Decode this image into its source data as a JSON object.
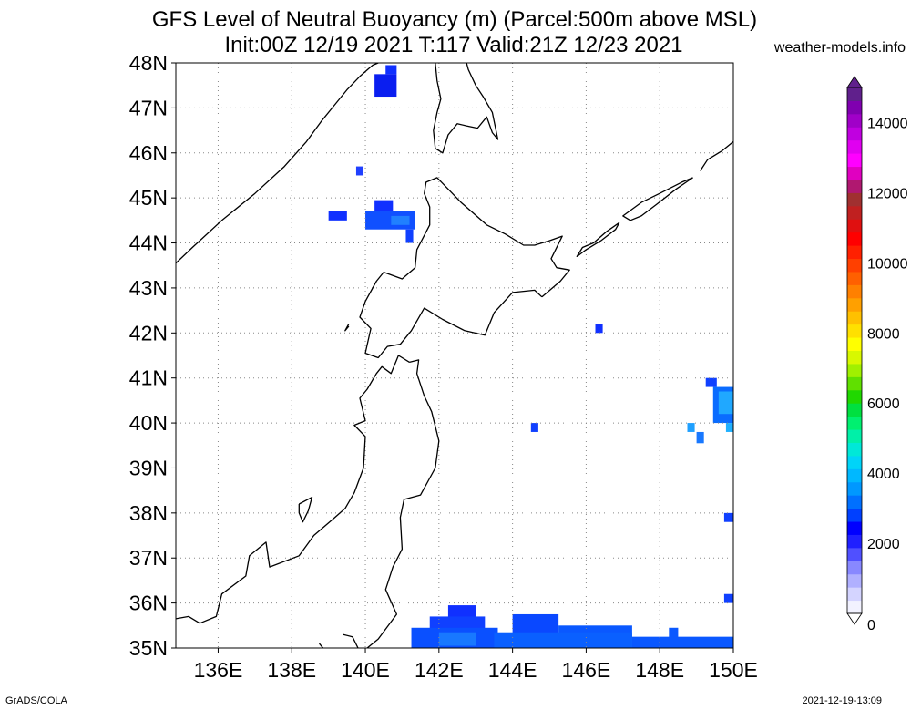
{
  "title": "GFS Level of Neutral Buoyancy (m) (Parcel:500m above MSL)",
  "subtitle": "Init:00Z 12/19 2021 T:117 Valid:21Z 12/23 2021",
  "credit": "weather-models.info",
  "footer_left": "GrADS/COLA",
  "footer_right": "2021-12-19-13:09",
  "map": {
    "lat_labels": [
      "35N",
      "36N",
      "37N",
      "38N",
      "39N",
      "40N",
      "41N",
      "42N",
      "43N",
      "44N",
      "45N",
      "46N",
      "47N",
      "48N"
    ],
    "lon_labels": [
      "136E",
      "138E",
      "140E",
      "142E",
      "144E",
      "146E",
      "148E",
      "150E"
    ],
    "lat_values": [
      35,
      36,
      37,
      38,
      39,
      40,
      41,
      42,
      43,
      44,
      45,
      46,
      47,
      48
    ],
    "lon_values": [
      136,
      138,
      140,
      142,
      144,
      146,
      148,
      150
    ],
    "lon_range": [
      134.85,
      150
    ],
    "lat_range": [
      35,
      48
    ],
    "grid": "dotted"
  },
  "colorbar": {
    "labels": [
      "0",
      "2000",
      "4000",
      "6000",
      "8000",
      "10000",
      "12000",
      "14000"
    ],
    "values": [
      0,
      2000,
      4000,
      6000,
      8000,
      10000,
      12000,
      14000
    ],
    "range": [
      0,
      15000
    ],
    "colors": [
      "#f2f2ff",
      "#d4d4ff",
      "#b0b0ff",
      "#8888ff",
      "#5050ff",
      "#2020ff",
      "#0000ff",
      "#0040ff",
      "#0070ff",
      "#0098ff",
      "#00b8ff",
      "#00d4f8",
      "#00e8d8",
      "#00f0a8",
      "#00f070",
      "#00e040",
      "#20d800",
      "#60e000",
      "#a0f000",
      "#d8f800",
      "#ffff00",
      "#ffe000",
      "#ffc000",
      "#ffa000",
      "#ff8000",
      "#ff6000",
      "#ff4000",
      "#ff2000",
      "#ff0000",
      "#e01010",
      "#c02020",
      "#a03030",
      "#b01870",
      "#e000c0",
      "#ff00ff",
      "#e000f0",
      "#c000e0",
      "#a000c8",
      "#8000b0",
      "#60208c"
    ]
  },
  "lnb_cells": [
    {
      "lon": [
        140.55,
        140.85
      ],
      "lat": [
        47.75,
        47.95
      ],
      "color": "#1030ff"
    },
    {
      "lon": [
        140.25,
        140.85
      ],
      "lat": [
        47.25,
        47.75
      ],
      "color": "#0a1ef0"
    },
    {
      "lon": [
        139.75,
        139.95
      ],
      "lat": [
        45.5,
        45.7
      ],
      "color": "#2040ff"
    },
    {
      "lon": [
        139.0,
        139.5
      ],
      "lat": [
        44.5,
        44.7
      ],
      "color": "#1030ff"
    },
    {
      "lon": [
        140.25,
        140.75
      ],
      "lat": [
        44.6,
        44.95
      ],
      "color": "#1030ff"
    },
    {
      "lon": [
        140.0,
        141.35
      ],
      "lat": [
        44.3,
        44.7
      ],
      "color": "#1050ff"
    },
    {
      "lon": [
        140.7,
        141.2
      ],
      "lat": [
        44.4,
        44.6
      ],
      "color": "#2080ff"
    },
    {
      "lon": [
        141.1,
        141.3
      ],
      "lat": [
        44.0,
        44.3
      ],
      "color": "#1040ff"
    },
    {
      "lon": [
        146.25,
        146.45
      ],
      "lat": [
        42.0,
        42.2
      ],
      "color": "#1030ff"
    },
    {
      "lon": [
        149.25,
        149.55
      ],
      "lat": [
        40.8,
        41.0
      ],
      "color": "#1040ff"
    },
    {
      "lon": [
        149.45,
        150.0
      ],
      "lat": [
        40.0,
        40.8
      ],
      "color": "#0a6cff"
    },
    {
      "lon": [
        149.6,
        150.0
      ],
      "lat": [
        40.2,
        40.7
      ],
      "color": "#20a8ff"
    },
    {
      "lon": [
        149.8,
        150.0
      ],
      "lat": [
        39.8,
        40.0
      ],
      "color": "#20b0ff"
    },
    {
      "lon": [
        148.75,
        148.95
      ],
      "lat": [
        39.8,
        40.0
      ],
      "color": "#20a0ff"
    },
    {
      "lon": [
        149.0,
        149.2
      ],
      "lat": [
        39.55,
        39.8
      ],
      "color": "#1878ff"
    },
    {
      "lon": [
        144.5,
        144.7
      ],
      "lat": [
        39.8,
        40.0
      ],
      "color": "#1040ff"
    },
    {
      "lon": [
        149.75,
        150.0
      ],
      "lat": [
        37.8,
        38.0
      ],
      "color": "#1040ff"
    },
    {
      "lon": [
        149.75,
        150.0
      ],
      "lat": [
        36.0,
        36.2
      ],
      "color": "#1040ff"
    },
    {
      "lon": [
        142.25,
        143.0
      ],
      "lat": [
        35.6,
        35.95
      ],
      "color": "#1030ff"
    },
    {
      "lon": [
        141.75,
        143.25
      ],
      "lat": [
        35.4,
        35.7
      ],
      "color": "#1040ff"
    },
    {
      "lon": [
        141.25,
        143.6
      ],
      "lat": [
        35.0,
        35.45
      ],
      "color": "#0a50ff"
    },
    {
      "lon": [
        142.0,
        143.0
      ],
      "lat": [
        35.05,
        35.35
      ],
      "color": "#1878ff"
    },
    {
      "lon": [
        144.0,
        145.25
      ],
      "lat": [
        35.0,
        35.75
      ],
      "color": "#0a48ff"
    },
    {
      "lon": [
        145.25,
        147.25
      ],
      "lat": [
        35.0,
        35.5
      ],
      "color": "#0a58ff"
    },
    {
      "lon": [
        143.5,
        147.25
      ],
      "lat": [
        35.0,
        35.35
      ],
      "color": "#0a60ff"
    },
    {
      "lon": [
        147.25,
        150.0
      ],
      "lat": [
        35.0,
        35.25
      ],
      "color": "#0a58ff"
    },
    {
      "lon": [
        148.25,
        148.5
      ],
      "lat": [
        35.2,
        35.45
      ],
      "color": "#0a58ff"
    }
  ],
  "coastlines": [
    [
      [
        134.85,
        43.55
      ],
      [
        135.3,
        43.9
      ],
      [
        136.1,
        44.5
      ],
      [
        137.0,
        45.1
      ],
      [
        137.8,
        45.7
      ],
      [
        138.4,
        46.25
      ],
      [
        138.8,
        46.7
      ],
      [
        139.15,
        47.05
      ],
      [
        139.5,
        47.4
      ],
      [
        139.85,
        47.7
      ],
      [
        140.2,
        47.95
      ],
      [
        140.35,
        48.0
      ]
    ],
    [
      [
        141.9,
        48.0
      ],
      [
        141.95,
        47.6
      ],
      [
        142.05,
        47.2
      ],
      [
        141.95,
        46.9
      ],
      [
        141.85,
        46.5
      ],
      [
        141.9,
        46.1
      ],
      [
        142.1,
        46.0
      ],
      [
        142.25,
        46.4
      ],
      [
        142.5,
        46.65
      ],
      [
        142.75,
        46.6
      ],
      [
        143.05,
        46.55
      ],
      [
        143.3,
        46.8
      ],
      [
        143.45,
        46.45
      ],
      [
        143.6,
        46.3
      ],
      [
        143.45,
        46.9
      ],
      [
        143.2,
        47.25
      ],
      [
        143.0,
        47.5
      ],
      [
        142.8,
        47.85
      ],
      [
        142.75,
        48.0
      ]
    ],
    [
      [
        149.1,
        45.6
      ],
      [
        149.3,
        45.85
      ],
      [
        149.7,
        46.05
      ],
      [
        150.0,
        46.25
      ]
    ],
    [
      [
        144.8,
        42.8
      ],
      [
        145.3,
        43.15
      ],
      [
        145.55,
        43.4
      ],
      [
        145.2,
        43.45
      ],
      [
        145.05,
        43.65
      ],
      [
        145.35,
        44.15
      ],
      [
        145.0,
        44.05
      ],
      [
        144.6,
        43.95
      ],
      [
        144.3,
        43.95
      ],
      [
        143.8,
        44.2
      ],
      [
        143.3,
        44.4
      ],
      [
        142.6,
        44.9
      ],
      [
        141.95,
        45.45
      ],
      [
        141.65,
        45.35
      ],
      [
        141.6,
        45.1
      ],
      [
        141.75,
        44.8
      ],
      [
        141.75,
        44.4
      ],
      [
        141.4,
        43.85
      ],
      [
        141.35,
        43.45
      ],
      [
        141.0,
        43.2
      ],
      [
        140.5,
        43.35
      ],
      [
        140.3,
        43.15
      ],
      [
        140.0,
        42.7
      ],
      [
        139.85,
        42.35
      ],
      [
        140.15,
        42.1
      ],
      [
        140.0,
        41.55
      ],
      [
        140.35,
        41.45
      ],
      [
        140.6,
        41.7
      ],
      [
        140.95,
        41.75
      ],
      [
        141.25,
        42.05
      ],
      [
        141.6,
        42.55
      ],
      [
        142.1,
        42.3
      ],
      [
        142.7,
        42.05
      ],
      [
        143.25,
        41.95
      ],
      [
        143.5,
        42.45
      ],
      [
        144.0,
        42.9
      ],
      [
        144.6,
        42.95
      ],
      [
        144.8,
        42.8
      ]
    ],
    [
      [
        148.9,
        45.45
      ],
      [
        148.45,
        45.2
      ],
      [
        147.9,
        44.85
      ],
      [
        147.5,
        44.6
      ],
      [
        147.2,
        44.5
      ],
      [
        147.0,
        44.6
      ],
      [
        147.5,
        44.9
      ],
      [
        148.0,
        45.1
      ],
      [
        148.6,
        45.35
      ],
      [
        148.9,
        45.45
      ]
    ],
    [
      [
        146.9,
        44.45
      ],
      [
        146.55,
        44.25
      ],
      [
        146.2,
        44.0
      ],
      [
        145.9,
        43.9
      ],
      [
        145.75,
        43.7
      ],
      [
        146.0,
        43.85
      ],
      [
        146.4,
        44.05
      ],
      [
        146.8,
        44.3
      ],
      [
        146.9,
        44.45
      ]
    ],
    [
      [
        139.55,
        42.2
      ],
      [
        139.45,
        42.05
      ],
      [
        139.55,
        42.15
      ]
    ],
    [
      [
        141.2,
        41.35
      ],
      [
        140.9,
        41.5
      ],
      [
        140.7,
        41.1
      ],
      [
        140.45,
        41.25
      ],
      [
        140.3,
        41.1
      ],
      [
        140.05,
        40.75
      ],
      [
        139.85,
        40.55
      ],
      [
        140.0,
        40.05
      ],
      [
        139.7,
        39.95
      ],
      [
        140.0,
        39.7
      ],
      [
        139.95,
        39.0
      ],
      [
        139.7,
        38.45
      ],
      [
        139.45,
        38.1
      ],
      [
        139.1,
        37.85
      ],
      [
        138.6,
        37.5
      ],
      [
        138.2,
        37.05
      ],
      [
        137.4,
        36.8
      ],
      [
        137.3,
        37.35
      ],
      [
        136.85,
        37.05
      ],
      [
        136.75,
        36.6
      ],
      [
        136.1,
        36.2
      ],
      [
        135.95,
        35.7
      ],
      [
        135.5,
        35.55
      ],
      [
        135.2,
        35.7
      ],
      [
        134.85,
        35.65
      ]
    ],
    [
      [
        138.2,
        38.2
      ],
      [
        138.55,
        38.35
      ],
      [
        138.45,
        38.05
      ],
      [
        138.3,
        37.8
      ],
      [
        138.2,
        38.0
      ],
      [
        138.2,
        38.2
      ]
    ],
    [
      [
        141.2,
        41.35
      ],
      [
        141.45,
        41.4
      ],
      [
        141.4,
        41.1
      ],
      [
        141.6,
        40.6
      ],
      [
        141.8,
        40.25
      ],
      [
        142.0,
        39.6
      ],
      [
        141.9,
        39.0
      ],
      [
        141.5,
        38.4
      ],
      [
        141.05,
        38.3
      ],
      [
        140.95,
        37.9
      ],
      [
        141.0,
        37.2
      ],
      [
        140.75,
        36.8
      ],
      [
        140.55,
        36.3
      ],
      [
        140.85,
        35.75
      ],
      [
        140.35,
        35.2
      ],
      [
        140.05,
        35.0
      ]
    ],
    [
      [
        139.8,
        35.0
      ],
      [
        139.65,
        35.25
      ],
      [
        139.4,
        35.3
      ]
    ],
    [
      [
        138.85,
        35.0
      ],
      [
        138.75,
        35.1
      ]
    ]
  ]
}
